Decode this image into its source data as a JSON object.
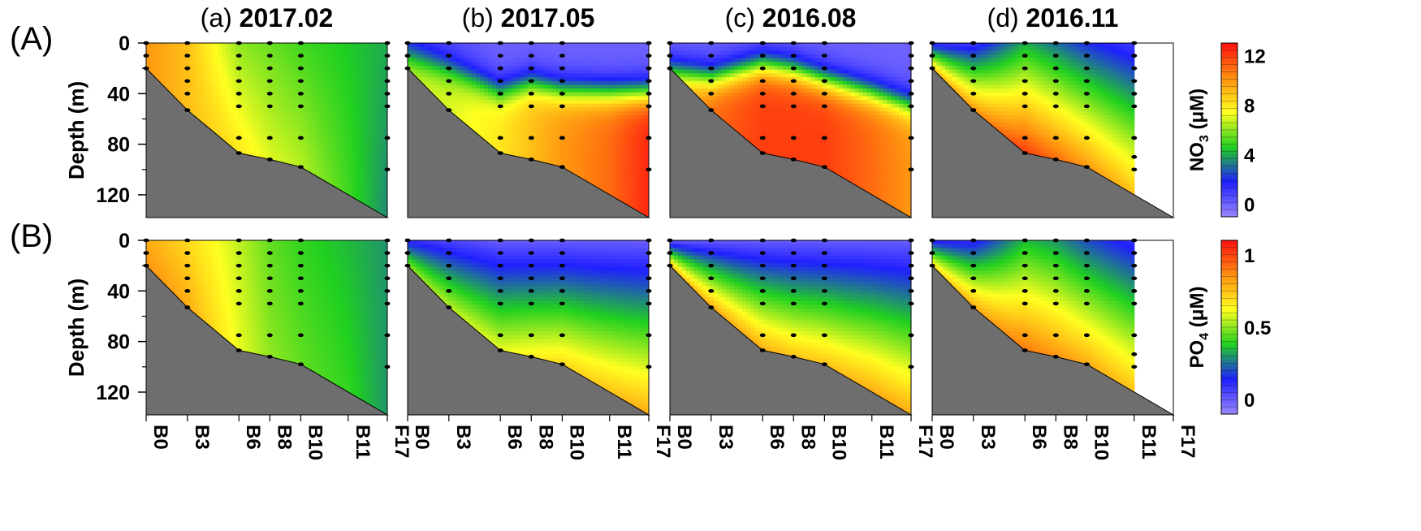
{
  "chart_data": {
    "type": "heatmap",
    "title": "",
    "rows": [
      {
        "label": "(A)",
        "variable": "NO3",
        "cbar_label": "NO",
        "cbar_sub": "3",
        "cbar_unit": " (μM)",
        "cbar_ticks": [
          "0",
          "4",
          "8",
          "12"
        ],
        "cbar_tick_values": [
          0,
          4,
          8,
          12
        ],
        "range": [
          -1,
          13
        ]
      },
      {
        "label": "(B)",
        "variable": "PO4",
        "cbar_label": "PO",
        "cbar_sub": "4",
        "cbar_unit": " (μM)",
        "cbar_ticks": [
          "0",
          "0.5",
          "1"
        ],
        "cbar_tick_values": [
          0,
          0.5,
          1
        ],
        "range": [
          -0.1,
          1.1
        ]
      }
    ],
    "columns": [
      {
        "prefix": "(a) ",
        "date": "2017.02"
      },
      {
        "prefix": "(b) ",
        "date": "2017.05"
      },
      {
        "prefix": "(c) ",
        "date": "2016.08"
      },
      {
        "prefix": "(d) ",
        "date": "2016.11"
      }
    ],
    "ylabel": "Depth (m)",
    "y_ticks": [
      "0",
      "40",
      "80",
      "120"
    ],
    "y_tick_values": [
      0,
      40,
      80,
      120
    ],
    "y_range": [
      0,
      138
    ],
    "stations": [
      "B0",
      "B3",
      "B6",
      "B8",
      "B10",
      "B11",
      "F17"
    ],
    "station_distance": [
      0,
      20,
      45,
      60,
      75,
      98,
      117
    ],
    "x_range": [
      0,
      117
    ],
    "bottom_profile": [
      {
        "x": 0,
        "depth": 20
      },
      {
        "x": 20,
        "depth": 53
      },
      {
        "x": 45,
        "depth": 87
      },
      {
        "x": 60,
        "depth": 92
      },
      {
        "x": 75,
        "depth": 98
      },
      {
        "x": 117,
        "depth": 138
      }
    ],
    "sample_depths": {
      "B0": [
        0,
        10,
        20
      ],
      "B3": [
        0,
        10,
        20,
        30,
        40,
        53
      ],
      "B6": [
        0,
        10,
        20,
        30,
        40,
        50,
        75,
        87
      ],
      "B8": [
        0,
        10,
        20,
        30,
        40,
        50,
        75,
        92
      ],
      "B10": [
        0,
        10,
        20,
        30,
        40,
        50,
        75,
        98
      ],
      "B11": [],
      "F17": [
        0,
        10,
        20,
        30,
        40,
        50,
        75,
        100
      ]
    },
    "panel_d_last_station": "B11",
    "panel_d_B11_depths": [
      0,
      10,
      20,
      30,
      40,
      50,
      75,
      90,
      100
    ],
    "color_scale": [
      "#9a88ff",
      "#2020ff",
      "#20d020",
      "#ffff20",
      "#ff9010",
      "#ff1010"
    ],
    "fields": {
      "NO3": {
        "2017.02": {
          "surface": [
            10,
            9,
            6,
            5.5,
            5,
            4.5,
            4
          ],
          "bottom": [
            10,
            9,
            8,
            7,
            6.5,
            5,
            3.5
          ]
        },
        "2017.05": {
          "surface": [
            1,
            0.5,
            0,
            0,
            0,
            0,
            0
          ],
          "bottom": [
            7,
            7,
            8,
            9,
            10,
            11,
            12.5
          ],
          "nitracline": [
            10,
            20,
            38,
            32,
            38,
            40,
            40
          ]
        },
        "2016.08": {
          "surface": [
            0,
            0,
            0,
            0,
            0,
            0,
            0
          ],
          "bottom": [
            9,
            11,
            12,
            12,
            12,
            11,
            10
          ],
          "nitracline": [
            22,
            28,
            18,
            22,
            30,
            40,
            50
          ]
        },
        "2016.11": {
          "surface": [
            1,
            1,
            4,
            3,
            2,
            1,
            null
          ],
          "bottom": [
            9,
            10,
            12,
            11,
            10,
            9,
            null
          ]
        }
      },
      "PO4": {
        "2017.02": {
          "surface": [
            0.8,
            0.7,
            0.55,
            0.45,
            0.4,
            0.35,
            0.3
          ],
          "bottom": [
            0.85,
            0.8,
            0.6,
            0.5,
            0.45,
            0.4,
            0.3
          ]
        },
        "2017.05": {
          "surface": [
            0.1,
            0.05,
            0,
            0,
            0,
            0,
            0
          ],
          "bottom": [
            0.5,
            0.55,
            0.6,
            0.65,
            0.7,
            0.75,
            0.8
          ]
        },
        "2016.08": {
          "surface": [
            0,
            0,
            0,
            0,
            0,
            0,
            0
          ],
          "bottom": [
            0.75,
            0.8,
            0.8,
            0.75,
            0.75,
            0.8,
            0.8
          ]
        },
        "2016.11": {
          "surface": [
            0.1,
            0.1,
            0.35,
            0.3,
            0.2,
            0.1,
            null
          ],
          "bottom": [
            0.7,
            0.8,
            0.9,
            0.85,
            0.8,
            0.75,
            null
          ]
        }
      }
    }
  }
}
